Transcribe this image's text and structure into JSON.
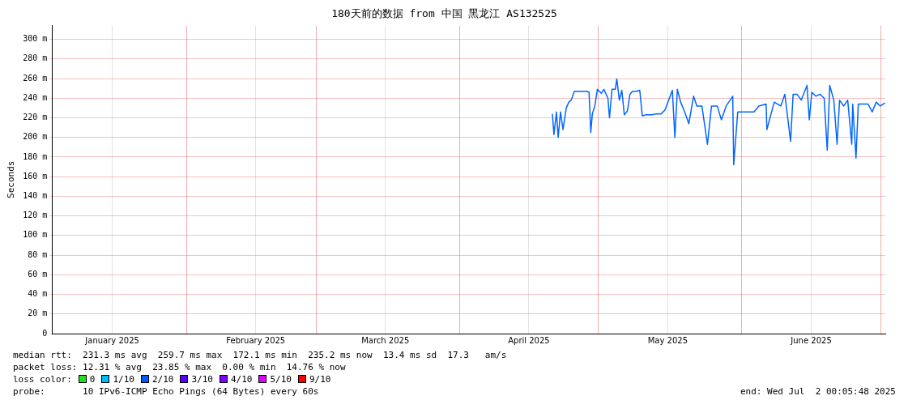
{
  "chart_data": {
    "type": "line",
    "title": "180天前的数据 from 中国 黑龙江 AS132525",
    "ylabel": "Seconds",
    "xlim": [
      "2025-01-03T00:05",
      "2025-07-02T00:05"
    ],
    "xticks": [
      {
        "value": "2025-01-16",
        "label": "January 2025"
      },
      {
        "value": "2025-02-01",
        "label": null
      },
      {
        "value": "2025-02-16",
        "label": "February 2025"
      },
      {
        "value": "2025-03-01",
        "label": null
      },
      {
        "value": "2025-03-16",
        "label": "March 2025"
      },
      {
        "value": "2025-04-01",
        "label": null
      },
      {
        "value": "2025-04-16",
        "label": "April 2025"
      },
      {
        "value": "2025-05-01",
        "label": null
      },
      {
        "value": "2025-05-16",
        "label": "May 2025"
      },
      {
        "value": "2025-06-01",
        "label": null
      },
      {
        "value": "2025-06-16",
        "label": "June 2025"
      },
      {
        "value": "2025-07-01",
        "label": null
      }
    ],
    "ylim": [
      0,
      314
    ],
    "yticks": [
      {
        "value": 0,
        "label": "0"
      },
      {
        "value": 20,
        "label": "20 m"
      },
      {
        "value": 40,
        "label": "40 m"
      },
      {
        "value": 60,
        "label": "60 m"
      },
      {
        "value": 80,
        "label": "80 m"
      },
      {
        "value": 100,
        "label": "100 m"
      },
      {
        "value": 120,
        "label": "120 m"
      },
      {
        "value": 140,
        "label": "140 m"
      },
      {
        "value": 160,
        "label": "160 m"
      },
      {
        "value": 180,
        "label": "180 m"
      },
      {
        "value": 200,
        "label": "200 m"
      },
      {
        "value": 220,
        "label": "220 m"
      },
      {
        "value": 240,
        "label": "240 m"
      },
      {
        "value": 260,
        "label": "260 m"
      },
      {
        "value": 280,
        "label": "280 m"
      },
      {
        "value": 300,
        "label": "300 m"
      }
    ],
    "grid": true,
    "legend": false,
    "marker": "none",
    "line_style": "solid",
    "series": [
      {
        "color": "#0066ff",
        "x": [
          "2025-04-21T02:00",
          "2025-04-21T10:00",
          "2025-04-21T23:00",
          "2025-04-22T08:00",
          "2025-04-22T20:00",
          "2025-04-23T09:00",
          "2025-04-24T02:00",
          "2025-04-24T15:00",
          "2025-04-25T03:00",
          "2025-04-25T20:00",
          "2025-04-26T09:00",
          "2025-04-27T06:00",
          "2025-04-28T12:00",
          "2025-04-29T00:00",
          "2025-04-29T09:00",
          "2025-04-29T17:00",
          "2025-04-30T06:00",
          "2025-04-30T19:00",
          "2025-05-01T16:00",
          "2025-05-02T05:00",
          "2025-05-03T02:00",
          "2025-05-03T10:00",
          "2025-05-03T23:00",
          "2025-05-04T16:00",
          "2025-05-05T00:00",
          "2025-05-05T13:00",
          "2025-05-06T02:00",
          "2025-05-06T15:00",
          "2025-05-07T07:00",
          "2025-05-07T20:00",
          "2025-05-08T09:00",
          "2025-05-09T06:00",
          "2025-05-09T23:00",
          "2025-05-10T12:00",
          "2025-05-11T09:00",
          "2025-05-12T14:00",
          "2025-05-13T12:00",
          "2025-05-14T13:00",
          "2025-05-15T10:00",
          "2025-05-17T00:00",
          "2025-05-17T13:00",
          "2025-05-18T02:00",
          "2025-05-18T19:00",
          "2025-05-19T16:00",
          "2025-05-20T13:00",
          "2025-05-21T14:00",
          "2025-05-22T07:00",
          "2025-05-23T09:00",
          "2025-05-24T14:00",
          "2025-05-25T11:00",
          "2025-05-26T17:00",
          "2025-05-27T14:00",
          "2025-05-28T15:00",
          "2025-05-30T01:00",
          "2025-05-30T06:00",
          "2025-05-31T03:00",
          "2025-06-01T20:00",
          "2025-06-03T15:00",
          "2025-06-04T16:00",
          "2025-06-06T06:00",
          "2025-06-06T10:00",
          "2025-06-08T00:00",
          "2025-06-09T10:00",
          "2025-06-10T07:00",
          "2025-06-11T13:00",
          "2025-06-12T02:00",
          "2025-06-12T23:00",
          "2025-06-13T20:00",
          "2025-06-15T02:00",
          "2025-06-15T14:00",
          "2025-06-16T03:00",
          "2025-06-17T00:00",
          "2025-06-17T21:00",
          "2025-06-18T19:00",
          "2025-06-19T11:00",
          "2025-06-20T00:00",
          "2025-06-20T21:00",
          "2025-06-21T14:00",
          "2025-06-22T03:00",
          "2025-06-23T00:00",
          "2025-06-23T21:00",
          "2025-06-24T18:00",
          "2025-06-24T23:00",
          "2025-06-25T16:00",
          "2025-06-26T04:00",
          "2025-06-27T01:00",
          "2025-06-28T07:00",
          "2025-06-29T04:00",
          "2025-06-30T01:00",
          "2025-06-30T22:00",
          "2025-07-01T23:00"
        ],
        "values": [
          224,
          203,
          226,
          200,
          226,
          208,
          230,
          236,
          238,
          247,
          247,
          247,
          247,
          246,
          205,
          224,
          232,
          249,
          245,
          249,
          240,
          220,
          249,
          249,
          259.7,
          238,
          248,
          223,
          227,
          244,
          247,
          247,
          248,
          222,
          223,
          223,
          224,
          224,
          228,
          248,
          200,
          249,
          236,
          226,
          214,
          242,
          232,
          232,
          193,
          232,
          232,
          218,
          232,
          242,
          172.1,
          226,
          226,
          226,
          232,
          234,
          208,
          236,
          232,
          244,
          196,
          244,
          244,
          238,
          253,
          218,
          246,
          242,
          244,
          240,
          187,
          253,
          238,
          193,
          238,
          232,
          238,
          193,
          234,
          179,
          234,
          234,
          234,
          226,
          236,
          232,
          235.2
        ]
      }
    ],
    "annotations": [
      "median rtt:  231.3 ms avg  259.7 ms max  172.1 ms min  235.2 ms now  13.4 ms sd  17.3   am/s",
      "packet loss: 12.31 % avg  23.85 % max  0.00 % min  14.76 % now",
      "loss color:",
      "0",
      "1/10",
      "2/10",
      "3/10",
      "4/10",
      "5/10",
      "9/10",
      "probe:       10 IPv6-ICMP Echo Pings (64 Bytes) every 60s",
      "end: Wed Jul  2 00:05:48 2025"
    ]
  }
}
